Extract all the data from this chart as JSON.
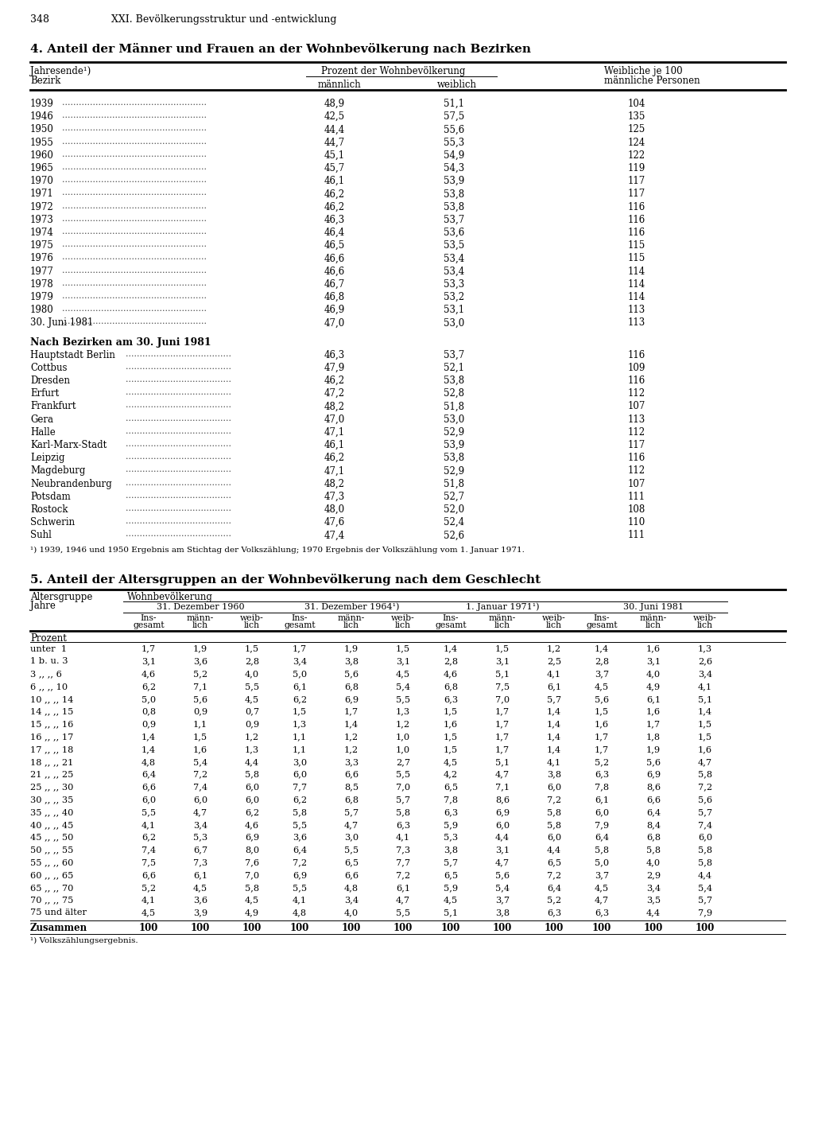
{
  "page_number": "348",
  "page_header": "XXI. Bevölkerungsstruktur und -entwicklung",
  "table4_title": "4. Anteil der Männer und Frauen an der Wohnbevölkerung nach Bezirken",
  "table4_col_header1a": "Jahresende¹)",
  "table4_col_header1b": "Bezirk",
  "table4_col_header2": "Prozent der Wohnbevölkerung",
  "table4_col_header2a": "männlich",
  "table4_col_header2b": "weiblich",
  "table4_col_header3a": "Weibliche je 100",
  "table4_col_header3b": "männliche Personen",
  "table4_rows": [
    [
      "1939",
      "48,9",
      "51,1",
      "104"
    ],
    [
      "1946",
      "42,5",
      "57,5",
      "135"
    ],
    [
      "1950",
      "44,4",
      "55,6",
      "125"
    ],
    [
      "1955",
      "44,7",
      "55,3",
      "124"
    ],
    [
      "1960",
      "45,1",
      "54,9",
      "122"
    ],
    [
      "1965",
      "45,7",
      "54,3",
      "119"
    ],
    [
      "1970",
      "46,1",
      "53,9",
      "117"
    ],
    [
      "1971",
      "46,2",
      "53,8",
      "117"
    ],
    [
      "1972",
      "46,2",
      "53,8",
      "116"
    ],
    [
      "1973",
      "46,3",
      "53,7",
      "116"
    ],
    [
      "1974",
      "46,4",
      "53,6",
      "116"
    ],
    [
      "1975",
      "46,5",
      "53,5",
      "115"
    ],
    [
      "1976",
      "46,6",
      "53,4",
      "115"
    ],
    [
      "1977",
      "46,6",
      "53,4",
      "114"
    ],
    [
      "1978",
      "46,7",
      "53,3",
      "114"
    ],
    [
      "1979",
      "46,8",
      "53,2",
      "114"
    ],
    [
      "1980",
      "46,9",
      "53,1",
      "113"
    ],
    [
      "30. Juni 1981",
      "47,0",
      "53,0",
      "113"
    ]
  ],
  "table4_bezirk_header": "Nach Bezirken am 30. Juni 1981",
  "table4_bezirk_rows": [
    [
      "Hauptstadt Berlin",
      "46,3",
      "53,7",
      "116"
    ],
    [
      "Cottbus",
      "47,9",
      "52,1",
      "109"
    ],
    [
      "Dresden",
      "46,2",
      "53,8",
      "116"
    ],
    [
      "Erfurt",
      "47,2",
      "52,8",
      "112"
    ],
    [
      "Frankfurt",
      "48,2",
      "51,8",
      "107"
    ],
    [
      "Gera",
      "47,0",
      "53,0",
      "113"
    ],
    [
      "Halle",
      "47,1",
      "52,9",
      "112"
    ],
    [
      "Karl-Marx-Stadt",
      "46,1",
      "53,9",
      "117"
    ],
    [
      "Leipzig",
      "46,2",
      "53,8",
      "116"
    ],
    [
      "Magdeburg",
      "47,1",
      "52,9",
      "112"
    ],
    [
      "Neubrandenburg",
      "48,2",
      "51,8",
      "107"
    ],
    [
      "Potsdam",
      "47,3",
      "52,7",
      "111"
    ],
    [
      "Rostock",
      "48,0",
      "52,0",
      "108"
    ],
    [
      "Schwerin",
      "47,6",
      "52,4",
      "110"
    ],
    [
      "Suhl",
      "47,4",
      "52,6",
      "111"
    ]
  ],
  "table4_footnote": "¹) 1939, 1946 und 1950 Ergebnis am Stichtag der Volkszählung; 1970 Ergebnis der Volkszählung vom 1. Januar 1971.",
  "table5_title": "5. Anteil der Altersgruppen an der Wohnbevölkerung nach dem Geschlecht",
  "table5_col1a": "Altersgruppe",
  "table5_col1b": "Jahre",
  "table5_col2": "Wohnbevölkerung",
  "table5_date1": "31. Dezember 1960",
  "table5_date2": "31. Dezember 1964¹)",
  "table5_date3": "1. Januar 1971¹)",
  "table5_date4": "30. Juni 1981",
  "table5_unit": "Prozent",
  "table5_rows": [
    [
      "unter  1",
      "1,7",
      "1,9",
      "1,5",
      "1,7",
      "1,9",
      "1,5",
      "1,4",
      "1,5",
      "1,2",
      "1,4",
      "1,6",
      "1,3"
    ],
    [
      "1 b. u. 3",
      "3,1",
      "3,6",
      "2,8",
      "3,4",
      "3,8",
      "3,1",
      "2,8",
      "3,1",
      "2,5",
      "2,8",
      "3,1",
      "2,6"
    ],
    [
      "3 ,, ,, 6",
      "4,6",
      "5,2",
      "4,0",
      "5,0",
      "5,6",
      "4,5",
      "4,6",
      "5,1",
      "4,1",
      "3,7",
      "4,0",
      "3,4"
    ],
    [
      "6 ,, ,, 10",
      "6,2",
      "7,1",
      "5,5",
      "6,1",
      "6,8",
      "5,4",
      "6,8",
      "7,5",
      "6,1",
      "4,5",
      "4,9",
      "4,1"
    ],
    [
      "10 ,, ,, 14",
      "5,0",
      "5,6",
      "4,5",
      "6,2",
      "6,9",
      "5,5",
      "6,3",
      "7,0",
      "5,7",
      "5,6",
      "6,1",
      "5,1"
    ],
    [
      "14 ,, ,, 15",
      "0,8",
      "0,9",
      "0,7",
      "1,5",
      "1,7",
      "1,3",
      "1,5",
      "1,7",
      "1,4",
      "1,5",
      "1,6",
      "1,4"
    ],
    [
      "15 ,, ,, 16",
      "0,9",
      "1,1",
      "0,9",
      "1,3",
      "1,4",
      "1,2",
      "1,6",
      "1,7",
      "1,4",
      "1,6",
      "1,7",
      "1,5"
    ],
    [
      "16 ,, ,, 17",
      "1,4",
      "1,5",
      "1,2",
      "1,1",
      "1,2",
      "1,0",
      "1,5",
      "1,7",
      "1,4",
      "1,7",
      "1,8",
      "1,5"
    ],
    [
      "17 ,, ,, 18",
      "1,4",
      "1,6",
      "1,3",
      "1,1",
      "1,2",
      "1,0",
      "1,5",
      "1,7",
      "1,4",
      "1,7",
      "1,9",
      "1,6"
    ],
    [
      "18 ,, ,, 21",
      "4,8",
      "5,4",
      "4,4",
      "3,0",
      "3,3",
      "2,7",
      "4,5",
      "5,1",
      "4,1",
      "5,2",
      "5,6",
      "4,7"
    ],
    [
      "21 ,, ,, 25",
      "6,4",
      "7,2",
      "5,8",
      "6,0",
      "6,6",
      "5,5",
      "4,2",
      "4,7",
      "3,8",
      "6,3",
      "6,9",
      "5,8"
    ],
    [
      "25 ,, ,, 30",
      "6,6",
      "7,4",
      "6,0",
      "7,7",
      "8,5",
      "7,0",
      "6,5",
      "7,1",
      "6,0",
      "7,8",
      "8,6",
      "7,2"
    ],
    [
      "30 ,, ,, 35",
      "6,0",
      "6,0",
      "6,0",
      "6,2",
      "6,8",
      "5,7",
      "7,8",
      "8,6",
      "7,2",
      "6,1",
      "6,6",
      "5,6"
    ],
    [
      "35 ,, ,, 40",
      "5,5",
      "4,7",
      "6,2",
      "5,8",
      "5,7",
      "5,8",
      "6,3",
      "6,9",
      "5,8",
      "6,0",
      "6,4",
      "5,7"
    ],
    [
      "40 ,, ,, 45",
      "4,1",
      "3,4",
      "4,6",
      "5,5",
      "4,7",
      "6,3",
      "5,9",
      "6,0",
      "5,8",
      "7,9",
      "8,4",
      "7,4"
    ],
    [
      "45 ,, ,, 50",
      "6,2",
      "5,3",
      "6,9",
      "3,6",
      "3,0",
      "4,1",
      "5,3",
      "4,4",
      "6,0",
      "6,4",
      "6,8",
      "6,0"
    ],
    [
      "50 ,, ,, 55",
      "7,4",
      "6,7",
      "8,0",
      "6,4",
      "5,5",
      "7,3",
      "3,8",
      "3,1",
      "4,4",
      "5,8",
      "5,8",
      "5,8"
    ],
    [
      "55 ,, ,, 60",
      "7,5",
      "7,3",
      "7,6",
      "7,2",
      "6,5",
      "7,7",
      "5,7",
      "4,7",
      "6,5",
      "5,0",
      "4,0",
      "5,8"
    ],
    [
      "60 ,, ,, 65",
      "6,6",
      "6,1",
      "7,0",
      "6,9",
      "6,6",
      "7,2",
      "6,5",
      "5,6",
      "7,2",
      "3,7",
      "2,9",
      "4,4"
    ],
    [
      "65 ,, ,, 70",
      "5,2",
      "4,5",
      "5,8",
      "5,5",
      "4,8",
      "6,1",
      "5,9",
      "5,4",
      "6,4",
      "4,5",
      "3,4",
      "5,4"
    ],
    [
      "70 ,, ,, 75",
      "4,1",
      "3,6",
      "4,5",
      "4,1",
      "3,4",
      "4,7",
      "4,5",
      "3,7",
      "5,2",
      "4,7",
      "3,5",
      "5,7"
    ],
    [
      "75 und älter",
      "4,5",
      "3,9",
      "4,9",
      "4,8",
      "4,0",
      "5,5",
      "5,1",
      "3,8",
      "6,3",
      "6,3",
      "4,4",
      "7,9"
    ]
  ],
  "table5_sum_row": [
    "Zusammen",
    "100",
    "100",
    "100",
    "100",
    "100",
    "100",
    "100",
    "100",
    "100",
    "100",
    "100",
    "100"
  ],
  "table5_footnote": "¹) Volkszählungsergebnis."
}
